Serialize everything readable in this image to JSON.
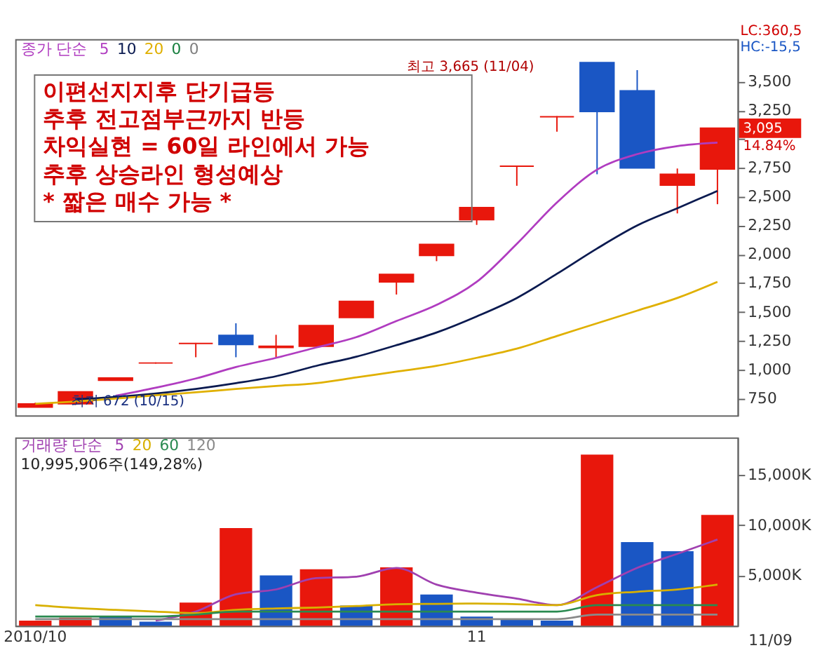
{
  "chart_data": [
    {
      "type": "candlestick",
      "legend_title": "종가 단순",
      "legend": "top left",
      "tick_labels": "y",
      "grid": false,
      "categories": [
        null,
        null,
        null,
        null,
        null,
        null,
        null,
        null,
        null,
        null,
        null,
        null,
        null,
        null,
        null,
        null,
        null,
        null
      ],
      "ohlc": [
        [
          672,
          710,
          672,
          700
        ],
        [
          700,
          805,
          690,
          805
        ],
        [
          905,
          925,
          905,
          925
        ],
        [
          1055,
          1060,
          1050,
          1055
        ],
        [
          1225,
          1230,
          1105,
          1225
        ],
        [
          1295,
          1400,
          1105,
          1215
        ],
        [
          1190,
          1300,
          1105,
          1200
        ],
        [
          1200,
          1380,
          1200,
          1380
        ],
        [
          1450,
          1590,
          1450,
          1590
        ],
        [
          1760,
          1825,
          1650,
          1825
        ],
        [
          1990,
          2085,
          1940,
          2085
        ],
        [
          2300,
          2405,
          2255,
          2405
        ],
        [
          2765,
          2770,
          2595,
          2765
        ],
        [
          3195,
          3200,
          3065,
          3195
        ],
        [
          3665,
          3665,
          2695,
          3240
        ],
        [
          3420,
          3600,
          2750,
          2750
        ],
        [
          2600,
          2745,
          2355,
          2695
        ],
        [
          2740,
          3095,
          2435,
          3095
        ]
      ],
      "colors": [
        "#e8170c",
        "#e8170c",
        "#e8170c",
        "#e8170c",
        "#e8170c",
        "#1a56c4",
        "#e8170c",
        "#e8170c",
        "#e8170c",
        "#e8170c",
        "#e8170c",
        "#e8170c",
        "#e8170c",
        "#e8170c",
        "#1a56c4",
        "#1a56c4",
        "#e8170c",
        "#e8170c"
      ],
      "series": [
        {
          "name": "5",
          "type": "line",
          "color": "#b03cc0",
          "values": [
            null,
            null,
            770,
            840,
            920,
            1020,
            1100,
            1190,
            1280,
            1420,
            1560,
            1760,
            2090,
            2450,
            2735,
            2870,
            2940,
            2970
          ]
        },
        {
          "name": "10",
          "type": "line",
          "color": "#0a1a50",
          "values": [
            null,
            740,
            760,
            790,
            830,
            880,
            940,
            1030,
            1110,
            1210,
            1320,
            1460,
            1620,
            1830,
            2050,
            2250,
            2400,
            2550
          ]
        },
        {
          "name": "20",
          "type": "line",
          "color": "#e0b000",
          "values": [
            700,
            720,
            745,
            775,
            800,
            830,
            855,
            880,
            930,
            980,
            1030,
            1100,
            1180,
            1290,
            1400,
            1510,
            1620,
            1760
          ]
        },
        {
          "name": "0",
          "type": "line",
          "color": "#1a8040",
          "values": [
            null,
            null,
            null,
            null,
            null,
            null,
            null,
            null,
            null,
            null,
            null,
            null,
            null,
            null,
            null,
            null,
            null,
            null
          ]
        },
        {
          "name": "0",
          "type": "line",
          "color": "#808080",
          "values": [
            null,
            null,
            null,
            null,
            null,
            null,
            null,
            null,
            null,
            null,
            null,
            null,
            null,
            null,
            null,
            null,
            null,
            null
          ]
        }
      ],
      "ylim": [
        600,
        3870
      ],
      "yticks": [
        750,
        {
          "value": 1000,
          "label": "1,000"
        },
        {
          "value": 1250,
          "label": "1,250"
        },
        {
          "value": 1500,
          "label": "1,500"
        },
        {
          "value": 1750,
          "label": "1,750"
        },
        {
          "value": 2000,
          "label": "2,000"
        },
        {
          "value": 2250,
          "label": "2,250"
        },
        {
          "value": 2500,
          "label": "2,500"
        },
        {
          "value": 2750,
          "label": "2,750"
        },
        {
          "value": 3000,
          "label": null
        },
        {
          "value": 3250,
          "label": "3,250"
        },
        {
          "value": 3500,
          "label": "3,500"
        }
      ],
      "annotations": [
        "이편선지지후 단기급등\n추후 전고점부근까지 반등\n차익실현 = 60일 라인에서 가능\n추후 상승라인 형성예상\n* 짧은 매수 가능 *",
        "최고 3,665 (11/04)",
        "최저 672 (10/15)",
        "LC:360,5",
        "HC:-15,5",
        "3,095",
        "14.84%"
      ]
    },
    {
      "type": "bar",
      "legend_title": "거래량 단순",
      "legend": "top left",
      "grid": false,
      "categories": [
        "2010/10",
        null,
        null,
        null,
        null,
        null,
        null,
        null,
        null,
        null,
        null,
        "11",
        null,
        null,
        null,
        null,
        null,
        null
      ],
      "values": [
        500,
        800,
        900,
        400,
        2300,
        9700,
        5000,
        5600,
        2000,
        5800,
        3100,
        900,
        600,
        500,
        17000,
        8300,
        7400,
        11000
      ],
      "colors": [
        "#e8170c",
        "#e8170c",
        "#1a56c4",
        "#1a56c4",
        "#e8170c",
        "#e8170c",
        "#1a56c4",
        "#e8170c",
        "#1a56c4",
        "#e8170c",
        "#1a56c4",
        "#1a56c4",
        "#1a56c4",
        "#1a56c4",
        "#e8170c",
        "#1a56c4",
        "#1a56c4",
        "#e8170c"
      ],
      "series": [
        {
          "name": "5",
          "type": "line",
          "color": "#a040b0",
          "values": [
            null,
            null,
            null,
            510,
            1400,
            3125,
            3600,
            4720,
            4870,
            5740,
            4080,
            3280,
            2680,
            2040,
            3830,
            5740,
            7140,
            8560
          ]
        },
        {
          "name": "20",
          "type": "line",
          "color": "#d8b000",
          "values": [
            2040,
            1760,
            1570,
            1400,
            1240,
            1570,
            1710,
            1800,
            1950,
            2130,
            2170,
            2200,
            2130,
            2040,
            3040,
            3370,
            3600,
            4080
          ]
        },
        {
          "name": "60",
          "type": "line",
          "color": "#2a8a50",
          "values": [
            905,
            905,
            905,
            905,
            1100,
            1400,
            1400,
            1400,
            1400,
            1400,
            1400,
            1400,
            1400,
            1400,
            2040,
            2040,
            2040,
            2040
          ]
        },
        {
          "name": "120",
          "type": "line",
          "color": "#8a8a8a",
          "values": [
            640,
            640,
            640,
            640,
            640,
            640,
            640,
            640,
            640,
            640,
            640,
            640,
            640,
            640,
            1100,
            1100,
            1100,
            1100
          ]
        }
      ],
      "ylim": [
        0,
        18700
      ],
      "yticks": [
        {
          "value": 5000,
          "label": "5,000K"
        },
        {
          "value": 10000,
          "label": "10,000K"
        },
        {
          "value": 15000,
          "label": "15,000K"
        }
      ],
      "annotations": [
        "10,995,906주(149,28%)",
        "11/09"
      ]
    }
  ]
}
